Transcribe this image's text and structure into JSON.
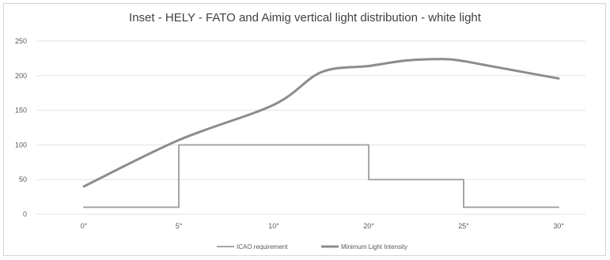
{
  "chart_data": {
    "type": "line",
    "title": "Inset - HELY - FATO and Aimig vertical light distribution - white light",
    "xlabel": "",
    "ylabel": "",
    "x_ticks": [
      "0°",
      "5°",
      "10°",
      "20°",
      "25°",
      "30°"
    ],
    "y_ticks": [
      "0",
      "50",
      "100",
      "150",
      "200",
      "250"
    ],
    "ylim": [
      0,
      250
    ],
    "grid": "horizontal",
    "legend_position": "bottom",
    "series": [
      {
        "name": "ICAO requirement",
        "color": "#a6a6a6",
        "style": "step",
        "x": [
          0,
          5,
          5,
          20,
          20,
          25,
          25,
          30
        ],
        "y": [
          10,
          10,
          100,
          100,
          50,
          50,
          10,
          10
        ]
      },
      {
        "name": "Minimum Light Intensity",
        "color": "#8c8c8c",
        "style": "smooth",
        "x": [
          0,
          5,
          10,
          15,
          20,
          22,
          24,
          25,
          26,
          28,
          30
        ],
        "y": [
          40,
          107,
          158,
          205,
          214,
          222,
          224,
          221,
          216,
          206,
          196
        ]
      }
    ]
  }
}
